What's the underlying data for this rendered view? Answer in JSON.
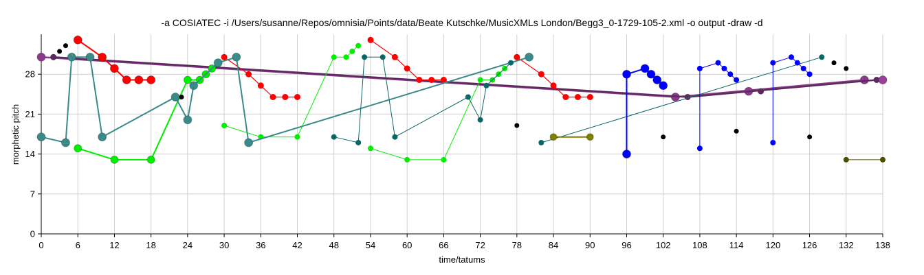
{
  "chart_data": {
    "type": "scatter",
    "title": "-a COSIATEC -i /Users/susanne/Repos/omnisia/Points/data/Beate Kutschke/MusicXMLs London/Begg3_0-1729-105-2.xml -o output -draw -d",
    "xlabel": "time/tatums",
    "ylabel": "morphetic pitch",
    "xlim": [
      0,
      138
    ],
    "ylim": [
      0,
      35
    ],
    "xticks": [
      0,
      6,
      12,
      18,
      24,
      30,
      36,
      42,
      48,
      54,
      60,
      66,
      72,
      78,
      84,
      90,
      96,
      102,
      108,
      114,
      120,
      126,
      132,
      138
    ],
    "yticks": [
      0,
      7,
      14,
      21,
      28
    ],
    "grid": true,
    "series": [
      {
        "color": "#8b3a8b",
        "size": 6,
        "line_width": 2.5,
        "points": [
          [
            0,
            31
          ],
          [
            104,
            24
          ],
          [
            116,
            25
          ],
          [
            135,
            27
          ]
        ],
        "segments": [
          [
            [
              0,
              31
            ],
            [
              104,
              24
            ]
          ],
          [
            [
              104,
              24
            ],
            [
              135,
              27
            ]
          ]
        ]
      },
      {
        "color": "#5c2a5c",
        "size": 4.5,
        "line_width": 2.5,
        "points": [
          [
            2,
            31
          ],
          [
            106,
            24
          ],
          [
            118,
            25
          ],
          [
            137,
            27
          ]
        ],
        "segments": [
          [
            [
              2,
              31
            ],
            [
              106,
              24
            ]
          ],
          [
            [
              106,
              24
            ],
            [
              137,
              27
            ]
          ]
        ]
      },
      {
        "color": "#9a409a",
        "size": 6,
        "line_width": 0,
        "points": [
          [
            138,
            27
          ]
        ],
        "segments": []
      },
      {
        "color": "#ff0000",
        "size": 6,
        "line_width": 2,
        "points": [
          [
            6,
            34
          ],
          [
            10,
            31
          ],
          [
            12,
            29
          ],
          [
            14,
            27
          ],
          [
            16,
            27
          ],
          [
            18,
            27
          ]
        ],
        "segments": [
          [
            [
              6,
              34
            ],
            [
              10,
              31
            ],
            [
              12,
              29
            ],
            [
              14,
              27
            ],
            [
              16,
              27
            ],
            [
              18,
              27
            ]
          ]
        ]
      },
      {
        "color": "#ff0000",
        "size": 4.5,
        "line_width": 1.2,
        "points": [
          [
            30,
            31
          ],
          [
            34,
            28
          ],
          [
            36,
            26
          ],
          [
            38,
            24
          ],
          [
            40,
            24
          ],
          [
            42,
            24
          ]
        ],
        "segments": [
          [
            [
              30,
              31
            ],
            [
              34,
              28
            ],
            [
              36,
              26
            ],
            [
              38,
              24
            ],
            [
              40,
              24
            ],
            [
              42,
              24
            ]
          ]
        ]
      },
      {
        "color": "#ff0000",
        "size": 4.5,
        "line_width": 1.2,
        "points": [
          [
            54,
            34
          ],
          [
            58,
            31
          ],
          [
            60,
            29
          ],
          [
            62,
            27
          ],
          [
            64,
            27
          ],
          [
            66,
            27
          ]
        ],
        "segments": [
          [
            [
              54,
              34
            ],
            [
              58,
              31
            ],
            [
              60,
              29
            ],
            [
              62,
              27
            ],
            [
              64,
              27
            ],
            [
              66,
              27
            ]
          ]
        ]
      },
      {
        "color": "#ff0000",
        "size": 4.5,
        "line_width": 1.2,
        "points": [
          [
            78,
            31
          ],
          [
            82,
            28
          ],
          [
            84,
            26
          ],
          [
            86,
            24
          ],
          [
            88,
            24
          ],
          [
            90,
            24
          ]
        ],
        "segments": [
          [
            [
              78,
              31
            ],
            [
              82,
              28
            ],
            [
              84,
              26
            ],
            [
              86,
              24
            ],
            [
              88,
              24
            ],
            [
              90,
              24
            ]
          ]
        ]
      },
      {
        "color": "#00ee00",
        "size": 5.5,
        "line_width": 2,
        "points": [
          [
            6,
            15
          ],
          [
            12,
            13
          ],
          [
            18,
            13
          ],
          [
            24,
            27
          ],
          [
            26,
            27
          ],
          [
            27,
            28
          ],
          [
            28,
            29
          ]
        ],
        "segments": [
          [
            [
              6,
              15
            ],
            [
              12,
              13
            ],
            [
              18,
              13
            ],
            [
              24,
              27
            ],
            [
              26,
              27
            ],
            [
              27,
              28
            ],
            [
              28,
              29
            ]
          ]
        ]
      },
      {
        "color": "#00ee00",
        "size": 4,
        "line_width": 1,
        "points": [
          [
            30,
            19
          ],
          [
            36,
            17
          ],
          [
            42,
            17
          ],
          [
            48,
            31
          ],
          [
            50,
            31
          ],
          [
            51,
            32
          ],
          [
            52,
            33
          ]
        ],
        "segments": [
          [
            [
              30,
              19
            ],
            [
              36,
              17
            ],
            [
              42,
              17
            ],
            [
              48,
              31
            ],
            [
              50,
              31
            ],
            [
              51,
              32
            ],
            [
              52,
              33
            ]
          ]
        ]
      },
      {
        "color": "#00ee00",
        "size": 4,
        "line_width": 1,
        "points": [
          [
            54,
            15
          ],
          [
            60,
            13
          ],
          [
            66,
            13
          ],
          [
            72,
            27
          ],
          [
            74,
            27
          ],
          [
            75,
            28
          ],
          [
            76,
            29
          ]
        ],
        "segments": [
          [
            [
              54,
              15
            ],
            [
              60,
              13
            ],
            [
              66,
              13
            ],
            [
              72,
              27
            ],
            [
              74,
              27
            ],
            [
              75,
              28
            ],
            [
              76,
              29
            ]
          ]
        ]
      },
      {
        "color": "#3a8a8a",
        "size": 6,
        "line_width": 2,
        "points": [
          [
            0,
            17
          ],
          [
            4,
            16
          ],
          [
            5,
            31
          ],
          [
            8,
            31
          ],
          [
            10,
            17
          ],
          [
            22,
            24
          ],
          [
            24,
            20
          ],
          [
            25,
            26
          ],
          [
            29,
            30
          ],
          [
            32,
            31
          ],
          [
            34,
            16
          ],
          [
            80,
            31
          ]
        ],
        "segments": [
          [
            [
              0,
              17
            ],
            [
              4,
              16
            ],
            [
              5,
              31
            ],
            [
              8,
              31
            ],
            [
              10,
              17
            ],
            [
              22,
              24
            ],
            [
              24,
              20
            ],
            [
              25,
              26
            ],
            [
              29,
              30
            ],
            [
              32,
              31
            ],
            [
              34,
              16
            ],
            [
              80,
              31
            ]
          ]
        ]
      },
      {
        "color": "#0b6666",
        "size": 4,
        "line_width": 1,
        "points": [
          [
            48,
            17
          ],
          [
            52,
            16
          ],
          [
            53,
            31
          ],
          [
            56,
            31
          ],
          [
            58,
            17
          ],
          [
            70,
            24
          ],
          [
            72,
            20
          ],
          [
            73,
            26
          ],
          [
            77,
            30
          ]
        ],
        "segments": [
          [
            [
              48,
              17
            ],
            [
              52,
              16
            ],
            [
              53,
              31
            ],
            [
              56,
              31
            ],
            [
              58,
              17
            ],
            [
              70,
              24
            ],
            [
              72,
              20
            ],
            [
              73,
              26
            ],
            [
              77,
              30
            ]
          ]
        ]
      },
      {
        "color": "#0b6666",
        "size": 4,
        "line_width": 1,
        "points": [
          [
            82,
            16
          ],
          [
            128,
            31
          ]
        ],
        "segments": [
          [
            [
              82,
              16
            ],
            [
              128,
              31
            ]
          ]
        ]
      },
      {
        "color": "#0000ff",
        "size": 6,
        "line_width": 2,
        "points": [
          [
            96,
            14
          ],
          [
            96,
            28
          ],
          [
            99,
            29
          ],
          [
            100,
            28
          ],
          [
            101,
            27
          ],
          [
            102,
            26
          ]
        ],
        "segments": [
          [
            [
              96,
              14
            ],
            [
              96,
              28
            ],
            [
              99,
              29
            ],
            [
              100,
              28
            ],
            [
              101,
              27
            ],
            [
              102,
              26
            ]
          ]
        ]
      },
      {
        "color": "#0000ff",
        "size": 4,
        "line_width": 1,
        "points": [
          [
            108,
            15
          ],
          [
            108,
            29
          ],
          [
            111,
            30
          ],
          [
            112,
            29
          ],
          [
            113,
            28
          ],
          [
            114,
            27
          ]
        ],
        "segments": [
          [
            [
              108,
              15
            ],
            [
              108,
              29
            ],
            [
              111,
              30
            ],
            [
              112,
              29
            ],
            [
              113,
              28
            ],
            [
              114,
              27
            ]
          ]
        ]
      },
      {
        "color": "#0000ff",
        "size": 4,
        "line_width": 1,
        "points": [
          [
            120,
            16
          ],
          [
            120,
            30
          ],
          [
            123,
            31
          ],
          [
            124,
            30
          ],
          [
            125,
            29
          ],
          [
            126,
            28
          ]
        ],
        "segments": [
          [
            [
              120,
              16
            ],
            [
              120,
              30
            ],
            [
              123,
              31
            ],
            [
              124,
              30
            ],
            [
              125,
              29
            ],
            [
              126,
              28
            ]
          ]
        ]
      },
      {
        "color": "#808000",
        "size": 5,
        "line_width": 2,
        "points": [
          [
            84,
            17
          ],
          [
            90,
            17
          ]
        ],
        "segments": [
          [
            [
              84,
              17
            ],
            [
              90,
              17
            ]
          ]
        ]
      },
      {
        "color": "#4d4d00",
        "size": 4,
        "line_width": 1,
        "points": [
          [
            132,
            13
          ],
          [
            138,
            13
          ]
        ],
        "segments": [
          [
            [
              132,
              13
            ],
            [
              138,
              13
            ]
          ]
        ]
      },
      {
        "color": "#000000",
        "size": 3.5,
        "line_width": 0,
        "points": [
          [
            3,
            32
          ],
          [
            4,
            33
          ],
          [
            23,
            24
          ],
          [
            78,
            19
          ],
          [
            102,
            17
          ],
          [
            114,
            18
          ],
          [
            126,
            17
          ],
          [
            130,
            30
          ],
          [
            132,
            29
          ]
        ],
        "segments": []
      }
    ]
  }
}
